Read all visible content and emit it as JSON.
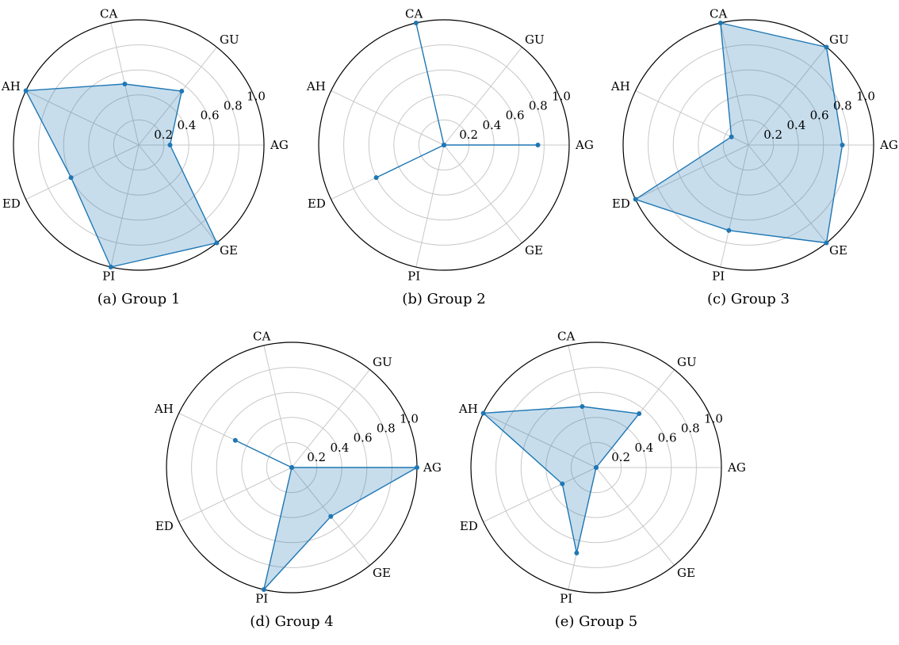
{
  "colors": {
    "line": "#1f77b4",
    "fill": "#1f77b4",
    "grid": "#c8c8c8",
    "outer": "#000000"
  },
  "chart_data": [
    {
      "type": "radar",
      "caption": "(a) Group 1",
      "categories": [
        "AG",
        "GU",
        "CA",
        "AH",
        "ED",
        "PI",
        "GE"
      ],
      "tick_labels": [
        "0.2",
        "0.4",
        "0.6",
        "0.8",
        "1.0"
      ],
      "rlim": [
        0,
        1
      ],
      "values": [
        0.25,
        0.55,
        0.5,
        1.0,
        0.6,
        1.0,
        1.0
      ]
    },
    {
      "type": "radar",
      "caption": "(b) Group 2",
      "categories": [
        "AG",
        "GU",
        "CA",
        "AH",
        "ED",
        "PI",
        "GE"
      ],
      "tick_labels": [
        "0.2",
        "0.4",
        "0.6",
        "0.8",
        "1.0"
      ],
      "rlim": [
        0,
        1
      ],
      "values": [
        0.75,
        0.0,
        1.0,
        0.0,
        0.6,
        0.0,
        0.0
      ]
    },
    {
      "type": "radar",
      "caption": "(c) Group 3",
      "categories": [
        "AG",
        "GU",
        "CA",
        "AH",
        "ED",
        "PI",
        "GE"
      ],
      "tick_labels": [
        "0.2",
        "0.4",
        "0.6",
        "0.8",
        "1.0"
      ],
      "rlim": [
        0,
        1
      ],
      "values": [
        0.75,
        1.0,
        1.0,
        0.15,
        1.0,
        0.7,
        1.0
      ]
    },
    {
      "type": "radar",
      "caption": "(d) Group 4",
      "categories": [
        "AG",
        "GU",
        "CA",
        "AH",
        "ED",
        "PI",
        "GE"
      ],
      "tick_labels": [
        "0.2",
        "0.4",
        "0.6",
        "0.8",
        "1.0"
      ],
      "rlim": [
        0,
        1
      ],
      "values": [
        1.0,
        0.0,
        0.0,
        0.5,
        0.0,
        1.0,
        0.5
      ]
    },
    {
      "type": "radar",
      "caption": "(e) Group 5",
      "categories": [
        "AG",
        "GU",
        "CA",
        "AH",
        "ED",
        "PI",
        "GE"
      ],
      "tick_labels": [
        "0.2",
        "0.4",
        "0.6",
        "0.8",
        "1.0"
      ],
      "rlim": [
        0,
        1
      ],
      "values": [
        0.0,
        0.55,
        0.5,
        1.0,
        0.3,
        0.7,
        0.0
      ]
    }
  ]
}
